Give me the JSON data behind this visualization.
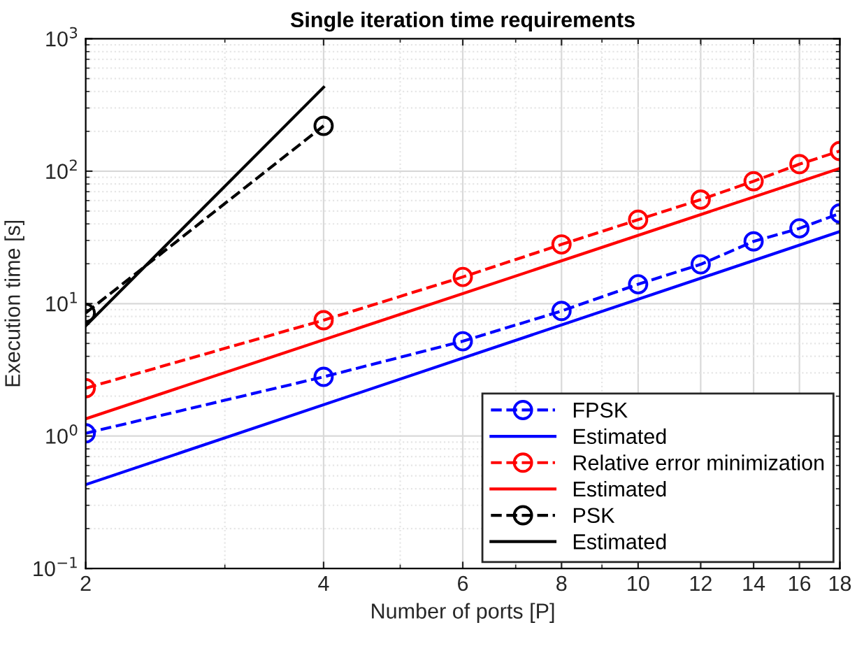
{
  "chart_data": {
    "type": "line",
    "title": "Single iteration time requirements",
    "xlabel": "Number of ports [P]",
    "ylabel": "Execution time [s]",
    "log": "xy",
    "xlim": [
      2,
      18
    ],
    "ylim": [
      0.1,
      1000
    ],
    "xticks": [
      2,
      4,
      6,
      8,
      10,
      12,
      14,
      16,
      18
    ],
    "yticks": [
      {
        "value": 0.1,
        "label": "10$^{−1}$"
      },
      {
        "value": 1,
        "label": "10$^{0}$"
      },
      {
        "value": 10,
        "label": "10$^{1}$"
      },
      {
        "value": 100,
        "label": "10$^{2}$"
      },
      {
        "value": 1000,
        "label": "10$^{3}$"
      }
    ],
    "grid": true,
    "legend": "bottom right",
    "series": [
      {
        "name": "FPSK",
        "color": "#0000ff",
        "marker": "circle",
        "line_style": "dashed",
        "x": [
          2,
          4,
          6,
          8,
          10,
          12,
          14,
          16,
          18
        ],
        "values": [
          1.05,
          2.8,
          5.2,
          8.8,
          14,
          19.8,
          29.5,
          37,
          48
        ]
      },
      {
        "name": "Estimated",
        "color": "#0000ff",
        "marker": "none",
        "line_style": "solid",
        "x": [
          2,
          18
        ],
        "values": [
          0.43,
          35
        ]
      },
      {
        "name": "Relative error minimization",
        "color": "#ff0000",
        "marker": "circle",
        "line_style": "dashed",
        "x": [
          2,
          4,
          6,
          8,
          10,
          12,
          14,
          16,
          18
        ],
        "values": [
          2.3,
          7.5,
          15.9,
          28,
          43,
          61,
          84,
          113,
          142
        ]
      },
      {
        "name": "Estimated",
        "color": "#ff0000",
        "marker": "none",
        "line_style": "solid",
        "x": [
          2,
          18
        ],
        "values": [
          1.35,
          105
        ]
      },
      {
        "name": "PSK",
        "color": "#000000",
        "marker": "circle",
        "line_style": "dashed",
        "x": [
          2,
          4
        ],
        "values": [
          8.5,
          220
        ]
      },
      {
        "name": "Estimated",
        "color": "#000000",
        "marker": "none",
        "line_style": "solid",
        "x": [
          2,
          4
        ],
        "values": [
          6.8,
          430
        ]
      }
    ]
  }
}
